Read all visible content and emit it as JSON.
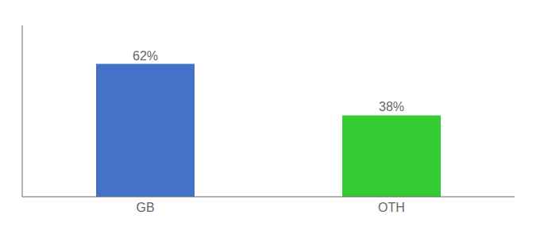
{
  "chart_data": {
    "type": "bar",
    "categories": [
      "GB",
      "OTH"
    ],
    "values": [
      62,
      38
    ],
    "colors": [
      "#4472c9",
      "#33cc33"
    ],
    "value_labels": [
      "62%",
      "38%"
    ],
    "data_labels": true,
    "ylim": [
      0,
      80
    ],
    "tick_labels": "x",
    "grid": false
  }
}
